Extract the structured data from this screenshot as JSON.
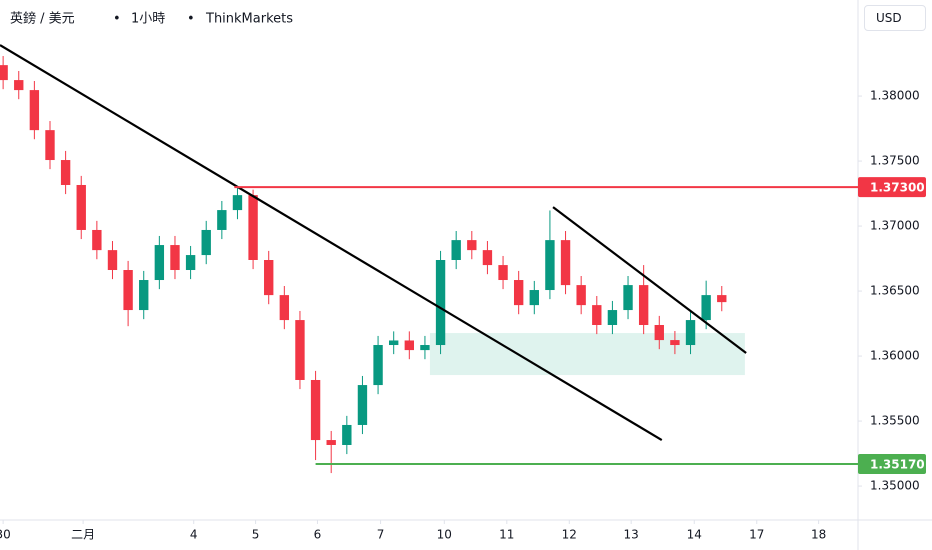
{
  "chart_data": {
    "type": "candlestick",
    "title_parts": [
      "英鎊 / 美元",
      "1小時",
      "ThinkMarkets"
    ],
    "currency": "USD",
    "x": [
      0,
      0.25,
      0.5,
      0.75,
      1,
      1.25,
      1.5,
      1.75,
      2,
      2.25,
      2.5,
      2.75,
      3,
      3.25,
      3.5,
      3.75,
      4,
      4.25,
      4.5,
      4.75,
      5,
      5.25,
      5.5,
      5.75,
      6,
      6.25,
      6.5,
      6.75,
      7,
      7.25,
      7.5,
      7.75,
      8,
      8.25,
      8.5,
      8.75,
      9,
      9.25,
      9.5,
      9.75,
      10,
      10.25,
      10.5,
      10.75,
      11,
      11.25,
      11.5
    ],
    "open": [
      1.38238,
      1.38123,
      1.38046,
      1.37738,
      1.37508,
      1.37316,
      1.3697,
      1.36815,
      1.36662,
      1.36354,
      1.36585,
      1.36854,
      1.36662,
      1.36777,
      1.3697,
      1.37123,
      1.37238,
      1.36739,
      1.36469,
      1.36277,
      1.35816,
      1.35354,
      1.35316,
      1.3547,
      1.35777,
      1.36085,
      1.3612,
      1.36046,
      1.36085,
      1.36739,
      1.36892,
      1.36815,
      1.367,
      1.36585,
      1.36392,
      1.36508,
      1.36892,
      1.36546,
      1.36392,
      1.36239,
      1.36354,
      1.36546,
      1.36239,
      1.36123,
      1.36085,
      1.36277,
      1.36469
    ],
    "high": [
      1.38308,
      1.38193,
      1.38116,
      1.37808,
      1.37578,
      1.37386,
      1.3704,
      1.36885,
      1.36732,
      1.36655,
      1.36924,
      1.36924,
      1.36847,
      1.3704,
      1.37193,
      1.373,
      1.3728,
      1.36809,
      1.36539,
      1.36347,
      1.35886,
      1.35424,
      1.3554,
      1.35847,
      1.36155,
      1.3619,
      1.3619,
      1.36155,
      1.36809,
      1.36962,
      1.36962,
      1.36885,
      1.3677,
      1.36655,
      1.36578,
      1.3712,
      1.36962,
      1.36616,
      1.36462,
      1.36424,
      1.36616,
      1.367,
      1.36309,
      1.36193,
      1.36347,
      1.3658,
      1.36539
    ],
    "low": [
      1.38053,
      1.37976,
      1.37668,
      1.37438,
      1.37246,
      1.369,
      1.36745,
      1.36592,
      1.3623,
      1.36284,
      1.36515,
      1.36592,
      1.36592,
      1.36707,
      1.369,
      1.37053,
      1.36669,
      1.36399,
      1.36207,
      1.35746,
      1.352,
      1.351,
      1.35246,
      1.354,
      1.35707,
      1.36015,
      1.35976,
      1.35976,
      1.36015,
      1.36669,
      1.36745,
      1.3663,
      1.36515,
      1.36322,
      1.36322,
      1.36438,
      1.36476,
      1.36322,
      1.36169,
      1.36169,
      1.36284,
      1.36169,
      1.36053,
      1.36015,
      1.36015,
      1.36207,
      1.36345
    ],
    "close": [
      1.38123,
      1.38046,
      1.37738,
      1.37508,
      1.37316,
      1.3697,
      1.36815,
      1.36662,
      1.36354,
      1.36585,
      1.36854,
      1.36662,
      1.36777,
      1.3697,
      1.37123,
      1.37238,
      1.36739,
      1.36469,
      1.36277,
      1.35816,
      1.35354,
      1.35316,
      1.3547,
      1.35777,
      1.36085,
      1.3612,
      1.36046,
      1.36085,
      1.36739,
      1.36892,
      1.36815,
      1.367,
      1.36585,
      1.36392,
      1.36508,
      1.36892,
      1.36546,
      1.36392,
      1.36239,
      1.36354,
      1.36546,
      1.36239,
      1.36123,
      1.36085,
      1.36277,
      1.36469,
      1.36415
    ],
    "up_color": "#089981",
    "down_color": "#f23645",
    "xlim": [
      -0.05,
      13.68
    ],
    "xticks": [
      {
        "value": 0,
        "label": "30"
      },
      {
        "value": 1.28,
        "label": "二月"
      },
      {
        "value": 3.05,
        "label": "4"
      },
      {
        "value": 4.04,
        "label": "5"
      },
      {
        "value": 5.03,
        "label": "6"
      },
      {
        "value": 6.04,
        "label": "7"
      },
      {
        "value": 7.06,
        "label": "10"
      },
      {
        "value": 8.06,
        "label": "11"
      },
      {
        "value": 9.06,
        "label": "12"
      },
      {
        "value": 10.05,
        "label": "13"
      },
      {
        "value": 11.06,
        "label": "14"
      },
      {
        "value": 12.06,
        "label": "17"
      },
      {
        "value": 13.05,
        "label": "18"
      }
    ],
    "ylim": [
      1.34739,
      1.38739
    ],
    "yticks": [
      {
        "value": 1.38,
        "label": "1.38000"
      },
      {
        "value": 1.375,
        "label": "1.37500"
      },
      {
        "value": 1.37,
        "label": "1.37000"
      },
      {
        "value": 1.365,
        "label": "1.36500"
      },
      {
        "value": 1.36,
        "label": "1.36000"
      },
      {
        "value": 1.355,
        "label": "1.35500"
      },
      {
        "value": 1.35,
        "label": "1.35000"
      }
    ],
    "grid": false,
    "levels": [
      {
        "value": 1.373,
        "label": "1.37300",
        "color": "#f23645",
        "start": 3.7
      },
      {
        "value": 1.3517,
        "label": "1.35170",
        "color": "#4caf50",
        "start": 5.0
      }
    ],
    "trendlines": [
      {
        "x": [
          -0.05,
          10.54
        ],
        "y": [
          1.38392,
          1.35354
        ],
        "color": "#000000"
      },
      {
        "x": [
          8.8,
          11.89
        ],
        "y": [
          1.37146,
          1.36024
        ],
        "color": "#000000"
      }
    ],
    "zone": {
      "x": [
        6.83,
        11.87
      ],
      "y": [
        1.36177,
        1.35854
      ],
      "color": "#dff3ee"
    }
  }
}
